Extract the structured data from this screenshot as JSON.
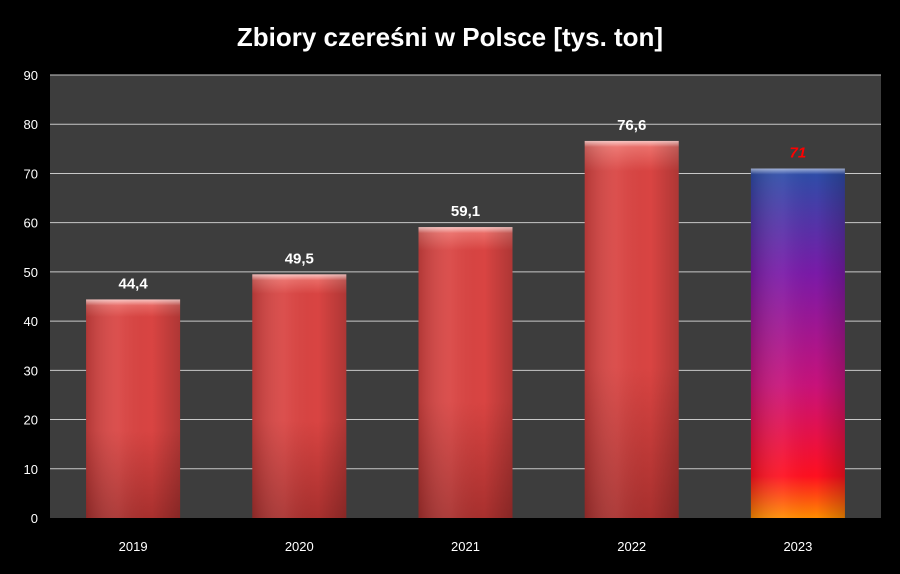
{
  "chart_data": {
    "type": "bar",
    "title": "Zbiory czereśni w Polsce [tys. ton]",
    "xlabel": "",
    "ylabel": "",
    "categories": [
      "2019",
      "2020",
      "2021",
      "2022",
      "2023"
    ],
    "values": [
      44.4,
      49.5,
      59.1,
      76.6,
      71
    ],
    "value_labels": [
      "44,4",
      "49,5",
      "59,1",
      "76,6",
      "71"
    ],
    "highlighted_index": 4,
    "ylim": [
      0,
      90
    ],
    "yticks": [
      0,
      10,
      20,
      30,
      40,
      50,
      60,
      70,
      80,
      90
    ],
    "grid": true,
    "legend": "none"
  },
  "colors": {
    "background": "#000000",
    "plot_area": "#3d3d3d",
    "gridline": "#c8c8c8",
    "bar": "#d94442",
    "bar_top": "#f07a74",
    "bar_bottom": "#a8302e",
    "highlight_gradient": [
      "#2a4fa8",
      "#7a1aa8",
      "#c8127a",
      "#ff1020",
      "#ff8c00"
    ],
    "text": "#ffffff",
    "highlight_label": "#ff0000"
  }
}
